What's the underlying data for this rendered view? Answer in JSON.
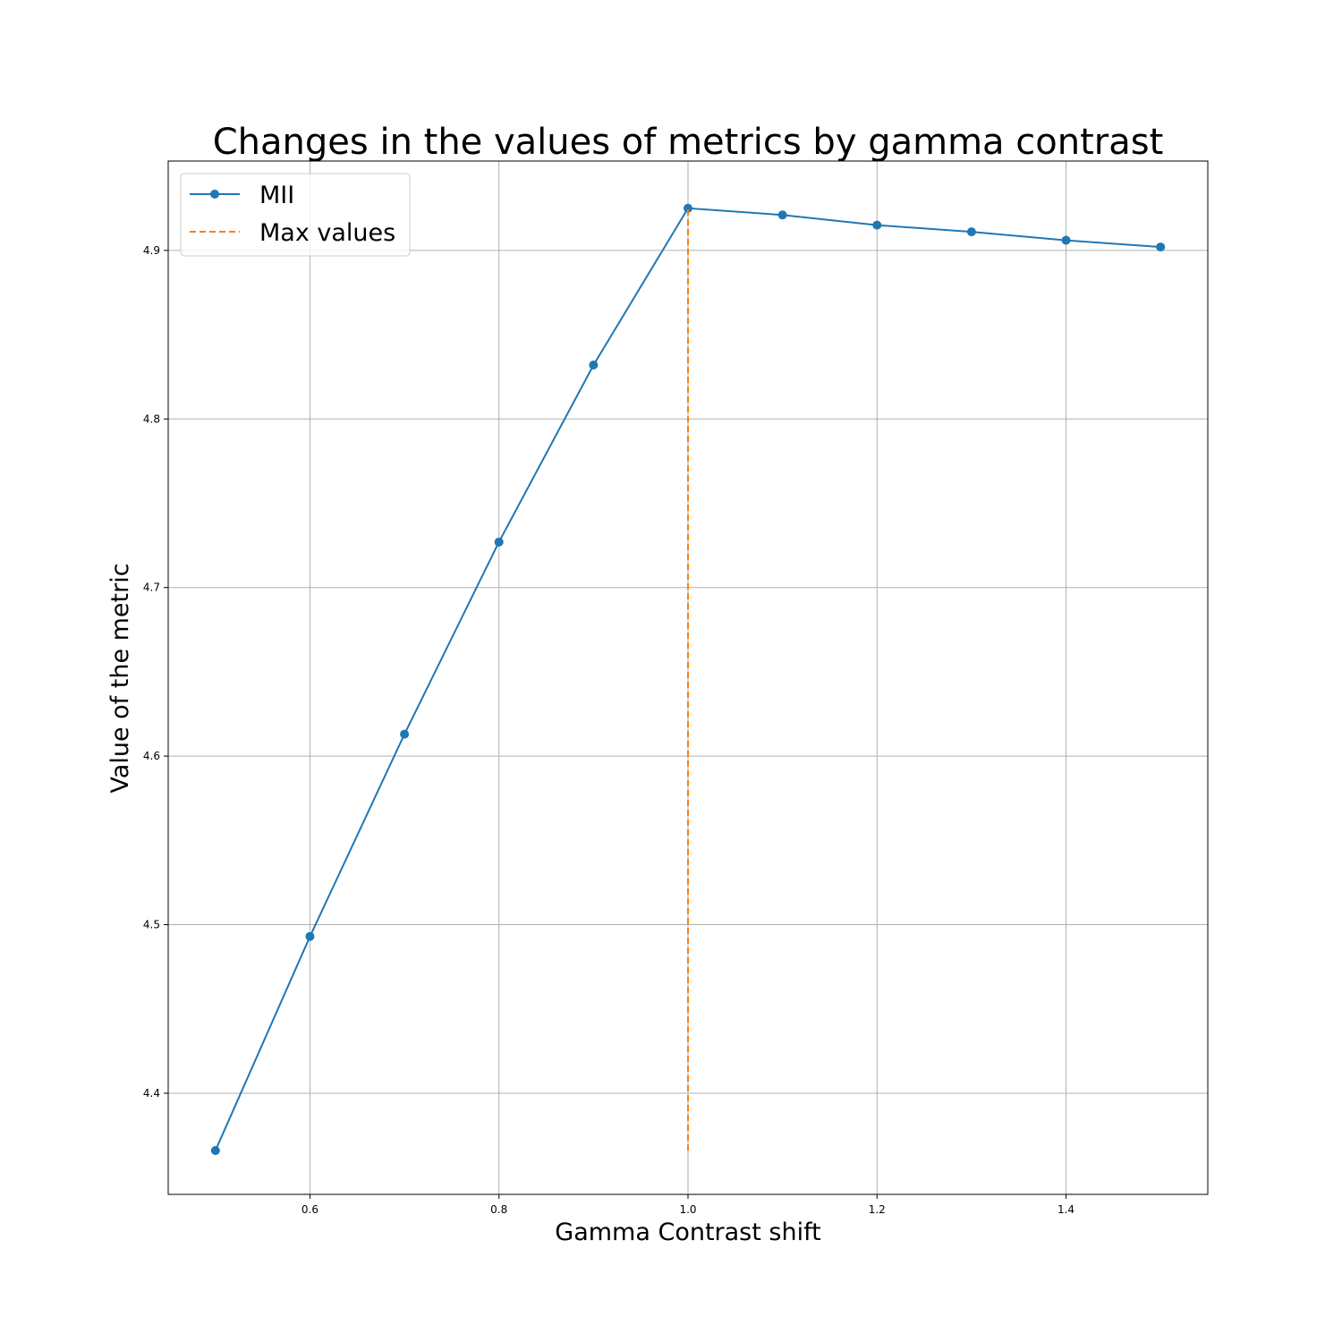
{
  "chart_data": {
    "type": "line",
    "title": "Changes in the values of metrics by gamma contrast",
    "xlabel": "Gamma Contrast shift",
    "ylabel": "Value of the metric",
    "xlim": [
      0.45,
      1.55
    ],
    "ylim": [
      4.34,
      4.953
    ],
    "x_ticks": [
      0.6,
      0.8,
      1.0,
      1.2,
      1.4
    ],
    "x_tick_labels": [
      "0.6",
      "0.8",
      "1.0",
      "1.2",
      "1.4"
    ],
    "y_ticks": [
      4.4,
      4.5,
      4.6,
      4.7,
      4.8,
      4.9
    ],
    "y_tick_labels": [
      "4.4",
      "4.5",
      "4.6",
      "4.7",
      "4.8",
      "4.9"
    ],
    "grid": true,
    "legend_position": "top-left",
    "series": [
      {
        "name": "MII",
        "color": "#1f77b4",
        "style": "solid",
        "marker": "circle",
        "x": [
          0.5,
          0.6,
          0.7,
          0.8,
          0.9,
          1.0,
          1.1,
          1.2,
          1.3,
          1.4,
          1.5
        ],
        "values": [
          4.366,
          4.493,
          4.613,
          4.727,
          4.832,
          4.925,
          4.921,
          4.915,
          4.911,
          4.906,
          4.902
        ]
      },
      {
        "name": "Max values",
        "color": "#ff7f0e",
        "style": "dashed",
        "marker": "none",
        "x": [
          1.0,
          1.0
        ],
        "values": [
          4.366,
          4.925
        ]
      }
    ]
  }
}
